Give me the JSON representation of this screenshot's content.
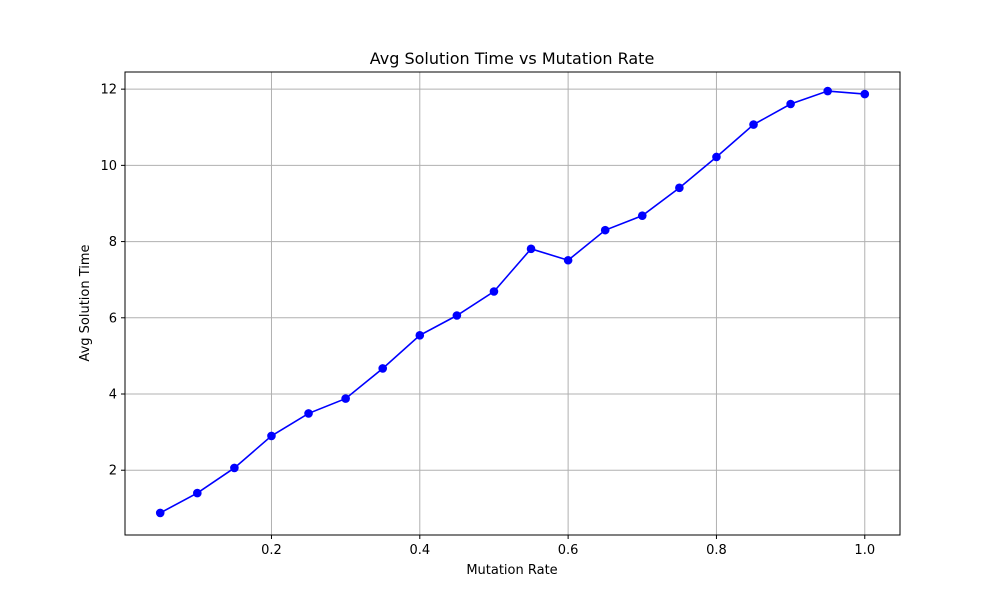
{
  "chart_data": {
    "type": "line",
    "title": "Avg Solution Time vs Mutation Rate",
    "xlabel": "Mutation Rate",
    "ylabel": "Avg Solution Time",
    "xlim": [
      0.0025,
      1.0475
    ],
    "ylim": [
      0.3,
      12.45
    ],
    "xticks": [
      0.2,
      0.4,
      0.6,
      0.8,
      1.0
    ],
    "xtick_labels": [
      "0.2",
      "0.4",
      "0.6",
      "0.8",
      "1.0"
    ],
    "yticks": [
      2,
      4,
      6,
      8,
      10,
      12
    ],
    "ytick_labels": [
      "2",
      "4",
      "6",
      "8",
      "10",
      "12"
    ],
    "grid": true,
    "color": "#0000ff",
    "marker": "circle",
    "x": [
      0.05,
      0.1,
      0.15,
      0.2,
      0.25,
      0.3,
      0.35,
      0.4,
      0.45,
      0.5,
      0.55,
      0.6,
      0.65,
      0.7,
      0.75,
      0.8,
      0.85,
      0.9,
      0.95,
      1.0
    ],
    "y": [
      0.88,
      1.4,
      2.06,
      2.9,
      3.49,
      3.88,
      4.67,
      5.54,
      6.06,
      6.69,
      7.81,
      7.51,
      8.3,
      8.68,
      9.41,
      10.22,
      11.07,
      11.61,
      11.95,
      11.87
    ]
  }
}
